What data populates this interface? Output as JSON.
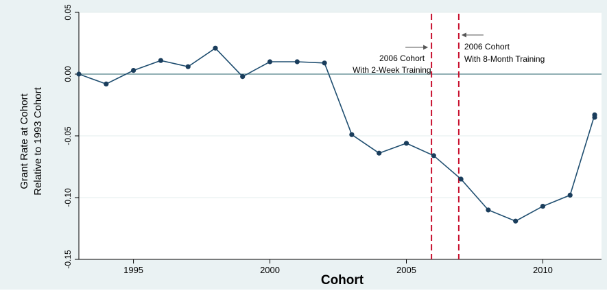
{
  "chart_data": {
    "type": "line",
    "title": "",
    "xlabel": "Cohort",
    "ylabel_lines": [
      "Grant Rate at Cohort",
      "Relative to 1993 Cohort"
    ],
    "xlim": [
      1993,
      2012
    ],
    "ylim": [
      -0.15,
      0.05
    ],
    "x_ticks": [
      {
        "value": 1995,
        "label": "1995"
      },
      {
        "value": 2000,
        "label": "2000"
      },
      {
        "value": 2005,
        "label": "2005"
      },
      {
        "value": 2010,
        "label": "2010"
      }
    ],
    "y_ticks": [
      {
        "value": 0.05,
        "label": "0.05"
      },
      {
        "value": 0.0,
        "label": "0.00"
      },
      {
        "value": -0.05,
        "label": "-0.05"
      },
      {
        "value": -0.1,
        "label": "-0.10"
      },
      {
        "value": -0.15,
        "label": "-0.15"
      }
    ],
    "grid": "horizontal",
    "reference_line": {
      "y": 0.0
    },
    "series": [
      {
        "x": [
          1993,
          1994,
          1995,
          1996,
          1997,
          1998,
          1999,
          2000,
          2001,
          2002,
          2003,
          2004,
          2005,
          2006,
          2007,
          2008,
          2009,
          2010,
          2011,
          2012,
          2013
        ],
        "y": [
          0.0,
          -0.008,
          0.003,
          0.011,
          0.006,
          0.021,
          -0.002,
          0.01,
          0.01,
          0.009,
          -0.049,
          -0.064,
          -0.056,
          -0.066,
          -0.085,
          -0.11,
          -0.119,
          -0.107,
          -0.098,
          -0.033,
          -0.035
        ]
      }
    ],
    "vertical_lines": [
      {
        "x": 2005.92,
        "label_lines": [
          "2006 Cohort",
          "With 2-Week Training"
        ],
        "arrow": "right"
      },
      {
        "x": 2006.92,
        "label_lines": [
          "2006 Cohort",
          "With 8-Month Training"
        ],
        "arrow": "left"
      }
    ]
  },
  "colors": {
    "frame_background": "#eaf2f3",
    "plot_background": "#ffffff",
    "gridline": "#e3ecee",
    "line": "#1f4e70",
    "marker": "#1a3d5c",
    "reference_line": "#4f7f86",
    "vertical_line": "#c8102e",
    "arrow": "#555555"
  }
}
